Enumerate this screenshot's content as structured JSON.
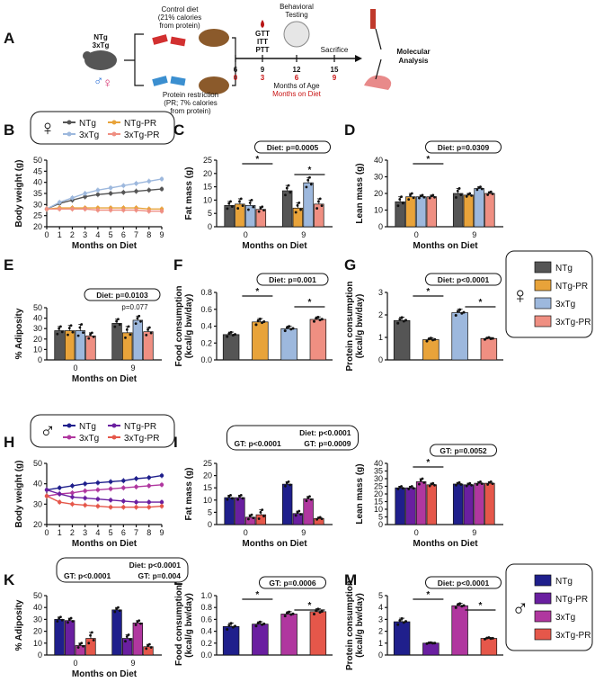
{
  "colors": {
    "female": {
      "NTg": "#555555",
      "NTg-PR": "#E8A33A",
      "3xTg": "#9DB8DD",
      "3xTg-PR": "#EF8F82"
    },
    "male": {
      "NTg": "#1F1F8C",
      "NTg-PR": "#6A1FA0",
      "3xTg": "#B0379F",
      "3xTg-PR": "#E5574A"
    }
  },
  "panelA": {
    "letter": "A",
    "mice": "NTg\n3xTg",
    "control_diet": "Control diet\n(21% calories\nfrom protein)",
    "pr_diet": "Protein restriction\n(PR; 7% calories\nfrom protein)",
    "tests": "GTT\nITT\nPTT",
    "behavioral": "Behavioral\nTesting",
    "sacrifice": "Sacrifice",
    "molecular": "Molecular\nAnalysis",
    "months_age": [
      "6",
      "9",
      "12",
      "15"
    ],
    "months_diet": [
      "0",
      "3",
      "6",
      "9"
    ],
    "months_age_label": "Months of Age",
    "months_diet_label": "Months on Diet"
  },
  "chart_data": [
    {
      "id": "B",
      "type": "line",
      "sex": "female",
      "title": "",
      "xlabel": "Months on Diet",
      "ylabel": "Body weight (g)",
      "xlim": [
        0,
        9
      ],
      "ylim": [
        20,
        50
      ],
      "yticks": [
        20,
        25,
        30,
        35,
        40,
        45,
        50
      ],
      "xticks": [
        0,
        1,
        2,
        3,
        4,
        5,
        6,
        7,
        8,
        9
      ],
      "legend": [
        "NTg",
        "NTg-PR",
        "3xTg",
        "3xTg-PR"
      ],
      "series": [
        {
          "name": "NTg",
          "x": [
            0,
            1,
            2,
            3,
            4,
            5,
            6,
            7,
            8,
            9
          ],
          "y": [
            28,
            30.5,
            32,
            33.5,
            34.5,
            35,
            35.5,
            36,
            36.5,
            37
          ]
        },
        {
          "name": "3xTg",
          "x": [
            0,
            1,
            2,
            3,
            4,
            5,
            6,
            7,
            8,
            9
          ],
          "y": [
            28,
            31,
            33,
            35,
            36.5,
            37.5,
            38.5,
            39.5,
            40.5,
            41.5
          ]
        },
        {
          "name": "NTg-PR",
          "x": [
            0,
            1,
            2,
            3,
            4,
            5,
            6,
            7,
            8,
            9
          ],
          "y": [
            28,
            28.5,
            28.5,
            28.5,
            28.5,
            28.5,
            28.5,
            28.5,
            28,
            28
          ]
        },
        {
          "name": "3xTg-PR",
          "x": [
            0,
            1,
            2,
            3,
            4,
            5,
            6,
            7,
            8,
            9
          ],
          "y": [
            28,
            28,
            28,
            28,
            27.5,
            27.5,
            27.5,
            27.5,
            27,
            27
          ]
        }
      ]
    },
    {
      "id": "C",
      "type": "bar",
      "sex": "female",
      "xlabel": "Months on Diet",
      "ylabel": "Fat mass (g)",
      "ylim": [
        0,
        25
      ],
      "yticks": [
        0,
        5,
        10,
        15,
        20,
        25
      ],
      "groups": [
        "0",
        "9"
      ],
      "series": [
        {
          "name": "NTg",
          "values": [
            8,
            13.5
          ],
          "errors": [
            1.5,
            2
          ]
        },
        {
          "name": "NTg-PR",
          "values": [
            8.5,
            7
          ],
          "errors": [
            2,
            2
          ]
        },
        {
          "name": "3xTg",
          "values": [
            8,
            16.5
          ],
          "errors": [
            2,
            2
          ]
        },
        {
          "name": "3xTg-PR",
          "values": [
            6.5,
            8.5
          ],
          "errors": [
            1,
            2
          ]
        }
      ],
      "stats": [
        "Diet: p=0.0005"
      ],
      "sig": [
        "*",
        "*"
      ]
    },
    {
      "id": "D",
      "type": "bar",
      "sex": "female",
      "xlabel": "Months on Diet",
      "ylabel": "Lean mass (g)",
      "ylim": [
        0,
        40
      ],
      "yticks": [
        0,
        10,
        20,
        30,
        40
      ],
      "groups": [
        "0",
        "9"
      ],
      "series": [
        {
          "name": "NTg",
          "values": [
            15,
            20
          ],
          "errors": [
            3,
            3
          ]
        },
        {
          "name": "NTg-PR",
          "values": [
            18,
            19
          ],
          "errors": [
            2,
            1
          ]
        },
        {
          "name": "3xTg",
          "values": [
            18,
            23
          ],
          "errors": [
            1,
            1
          ]
        },
        {
          "name": "3xTg-PR",
          "values": [
            18,
            20
          ],
          "errors": [
            1,
            1
          ]
        }
      ],
      "stats": [
        "Diet: p=0.0309"
      ],
      "sig": [
        "*"
      ]
    },
    {
      "id": "E",
      "type": "bar",
      "sex": "female",
      "xlabel": "Months on Diet",
      "ylabel": "% Adiposity",
      "ylim": [
        0,
        50
      ],
      "yticks": [
        0,
        10,
        20,
        30,
        40,
        50
      ],
      "groups": [
        "0",
        "9"
      ],
      "series": [
        {
          "name": "NTg",
          "values": [
            28,
            35
          ],
          "errors": [
            4,
            4
          ]
        },
        {
          "name": "NTg-PR",
          "values": [
            28,
            26
          ],
          "errors": [
            5,
            6
          ]
        },
        {
          "name": "3xTg",
          "values": [
            28,
            38
          ],
          "errors": [
            6,
            4
          ]
        },
        {
          "name": "3xTg-PR",
          "values": [
            23,
            27
          ],
          "errors": [
            3,
            4
          ]
        }
      ],
      "stats": [
        "Diet: p=0.0103"
      ],
      "annotation": "p=0.077"
    },
    {
      "id": "F",
      "type": "bar",
      "sex": "female",
      "xlabel": "",
      "ylabel": "Food consumption\n(kcal/g bw/day)",
      "ylim": [
        0,
        0.8
      ],
      "yticks": [
        "0.0",
        "0.2",
        "0.4",
        "0.6",
        "0.8"
      ],
      "categories": [
        "NTg",
        "NTg-PR",
        "3xTg",
        "3xTg-PR"
      ],
      "values": [
        0.3,
        0.45,
        0.37,
        0.48
      ],
      "errors": [
        0.03,
        0.04,
        0.03,
        0.03
      ],
      "stats": [
        "Diet: p=0.001"
      ],
      "sig": [
        "*",
        "*"
      ]
    },
    {
      "id": "G",
      "type": "bar",
      "sex": "female",
      "xlabel": "",
      "ylabel": "Protein consumption\n(kcal/g bw/day)",
      "ylim": [
        0,
        3
      ],
      "yticks": [
        0,
        1,
        2,
        3
      ],
      "categories": [
        "NTg",
        "NTg-PR",
        "3xTg",
        "3xTg-PR"
      ],
      "values": [
        1.75,
        0.9,
        2.1,
        0.95
      ],
      "errors": [
        0.15,
        0.08,
        0.15,
        0.05
      ],
      "stats": [
        "Diet: p<0.0001"
      ],
      "sig": [
        "*",
        "*"
      ]
    },
    {
      "id": "H",
      "type": "line",
      "sex": "male",
      "title": "",
      "xlabel": "Months on Diet",
      "ylabel": "Body weight (g)",
      "xlim": [
        0,
        9
      ],
      "ylim": [
        20,
        50
      ],
      "yticks": [
        20,
        30,
        40,
        50
      ],
      "xticks": [
        0,
        1,
        2,
        3,
        4,
        5,
        6,
        7,
        8,
        9
      ],
      "legend": [
        "NTg",
        "NTg-PR",
        "3xTg",
        "3xTg-PR"
      ],
      "series": [
        {
          "name": "NTg",
          "x": [
            0,
            1,
            2,
            3,
            4,
            5,
            6,
            7,
            8,
            9
          ],
          "y": [
            37,
            38,
            39,
            40,
            40.5,
            41,
            41.5,
            42.5,
            43,
            44
          ]
        },
        {
          "name": "3xTg",
          "x": [
            0,
            1,
            2,
            3,
            4,
            5,
            6,
            7,
            8,
            9
          ],
          "y": [
            34,
            35,
            35.5,
            36.5,
            37,
            37.5,
            38,
            38.5,
            39,
            39.5
          ]
        },
        {
          "name": "NTg-PR",
          "x": [
            0,
            1,
            2,
            3,
            4,
            5,
            6,
            7,
            8,
            9
          ],
          "y": [
            37,
            35,
            33.5,
            33,
            32.5,
            32,
            31.5,
            31,
            31,
            31
          ]
        },
        {
          "name": "3xTg-PR",
          "x": [
            0,
            1,
            2,
            3,
            4,
            5,
            6,
            7,
            8,
            9
          ],
          "y": [
            34,
            31,
            30,
            29.5,
            29,
            28.5,
            28.5,
            28.5,
            28.5,
            29
          ]
        }
      ]
    },
    {
      "id": "I",
      "type": "bar",
      "sex": "male",
      "xlabel": "Months on Diet",
      "ylabel": "Fat mass (g)",
      "ylim": [
        0,
        25
      ],
      "yticks": [
        0,
        5,
        10,
        15,
        20,
        25
      ],
      "groups": [
        "0",
        "9"
      ],
      "series": [
        {
          "name": "NTg",
          "values": [
            11,
            16.5
          ],
          "errors": [
            1,
            1
          ]
        },
        {
          "name": "NTg-PR",
          "values": [
            11,
            4.5
          ],
          "errors": [
            1,
            1
          ]
        },
        {
          "name": "3xTg",
          "values": [
            3,
            10.5
          ],
          "errors": [
            1,
            1
          ]
        },
        {
          "name": "3xTg-PR",
          "values": [
            4,
            2.5
          ],
          "errors": [
            2,
            0.5
          ]
        }
      ],
      "stats": [
        "Diet: p<0.0001",
        "GT: p<0.0001",
        "GT: p=0.0009"
      ]
    },
    {
      "id": "J",
      "type": "bar",
      "sex": "male",
      "xlabel": "Months on Diet",
      "ylabel": "Lean mass (g)",
      "ylim": [
        0,
        40
      ],
      "yticks": [
        0,
        5,
        10,
        15,
        20,
        25,
        30,
        35,
        40
      ],
      "groups": [
        "0",
        "9"
      ],
      "series": [
        {
          "name": "NTg",
          "values": [
            24,
            26.5
          ],
          "errors": [
            1,
            1
          ]
        },
        {
          "name": "NTg-PR",
          "values": [
            24,
            26
          ],
          "errors": [
            1,
            1
          ]
        },
        {
          "name": "3xTg",
          "values": [
            28,
            27
          ],
          "errors": [
            2,
            1
          ]
        },
        {
          "name": "3xTg-PR",
          "values": [
            26,
            27
          ],
          "errors": [
            1,
            1
          ]
        }
      ],
      "stats": [
        "GT: p=0.0052"
      ],
      "sig": [
        "*"
      ]
    },
    {
      "id": "K",
      "type": "bar",
      "sex": "male",
      "xlabel": "Months on Diet",
      "ylabel": "% Adiposity",
      "ylim": [
        0,
        50
      ],
      "yticks": [
        0,
        10,
        20,
        30,
        40,
        50
      ],
      "groups": [
        "0",
        "9"
      ],
      "series": [
        {
          "name": "NTg",
          "values": [
            30,
            38
          ],
          "errors": [
            2,
            2
          ]
        },
        {
          "name": "NTg-PR",
          "values": [
            29,
            14
          ],
          "errors": [
            2,
            3
          ]
        },
        {
          "name": "3xTg",
          "values": [
            8,
            27
          ],
          "errors": [
            2,
            2
          ]
        },
        {
          "name": "3xTg-PR",
          "values": [
            14,
            7
          ],
          "errors": [
            5,
            2
          ]
        }
      ],
      "stats": [
        "Diet: p<0.0001",
        "GT: p<0.0001",
        "GT: p=0.004"
      ]
    },
    {
      "id": "L",
      "type": "bar",
      "sex": "male",
      "xlabel": "",
      "ylabel": "Food consumption\n(kcal/g bw/day)",
      "ylim": [
        0,
        1.0
      ],
      "yticks": [
        "0.0",
        "0.2",
        "0.4",
        "0.6",
        "0.8",
        "1.0"
      ],
      "categories": [
        "NTg",
        "NTg-PR",
        "3xTg",
        "3xTg-PR"
      ],
      "values": [
        0.48,
        0.52,
        0.69,
        0.73
      ],
      "errors": [
        0.06,
        0.04,
        0.04,
        0.05
      ],
      "stats": [
        "GT: p=0.0006"
      ],
      "sig": [
        "*",
        "*"
      ]
    },
    {
      "id": "M",
      "type": "bar",
      "sex": "male",
      "xlabel": "",
      "ylabel": "Protein consumption\n(kcal/g bw/day)",
      "ylim": [
        0,
        5
      ],
      "yticks": [
        0,
        1,
        2,
        3,
        4,
        5
      ],
      "categories": [
        "NTg",
        "NTg-PR",
        "3xTg",
        "3xTg-PR"
      ],
      "values": [
        2.8,
        1.0,
        4.15,
        1.4
      ],
      "errors": [
        0.3,
        0.05,
        0.2,
        0.08
      ],
      "stats": [
        "Diet: p<0.0001"
      ],
      "sig": [
        "*",
        "*"
      ]
    }
  ],
  "legend_female": [
    "NTg",
    "NTg-PR",
    "3xTg",
    "3xTg-PR"
  ],
  "legend_male": [
    "NTg",
    "NTg-PR",
    "3xTg",
    "3xTg-PR"
  ]
}
